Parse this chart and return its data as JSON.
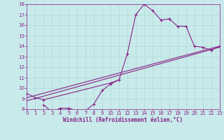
{
  "xlabel": "Windchill (Refroidissement éolien,°C)",
  "bg_color": "#c8eaea",
  "line_color": "#882288",
  "grid_color": "#aad4d4",
  "xmin": 0,
  "xmax": 23,
  "ymin": 8,
  "ymax": 18,
  "line_width": 0.8,
  "marker_size": 2.2,
  "font_size": 5.5,
  "tick_font_size": 5.0,
  "line1": {
    "x": [
      0,
      1,
      2,
      10,
      11,
      12,
      13,
      14,
      15,
      16,
      17
    ],
    "y": [
      9.5,
      9.1,
      8.9,
      10.5,
      10.8,
      13.3,
      17.0,
      18.0,
      17.4,
      16.5,
      16.6
    ]
  },
  "line2": {
    "x": [
      17,
      18,
      19,
      20,
      21,
      22,
      23
    ],
    "y": [
      16.6,
      15.9,
      15.9,
      14.0,
      13.9,
      13.6,
      14.0
    ]
  },
  "line3": {
    "x": [
      2,
      3,
      4,
      5,
      6,
      7,
      8,
      9,
      10,
      11
    ],
    "y": [
      8.4,
      7.75,
      8.1,
      8.1,
      7.85,
      7.85,
      8.5,
      9.8,
      10.4,
      10.8
    ]
  },
  "line4_straight": {
    "x": [
      0,
      23
    ],
    "y": [
      8.8,
      13.9
    ]
  },
  "line5_straight": {
    "x": [
      0,
      23
    ],
    "y": [
      9.1,
      14.0
    ]
  }
}
